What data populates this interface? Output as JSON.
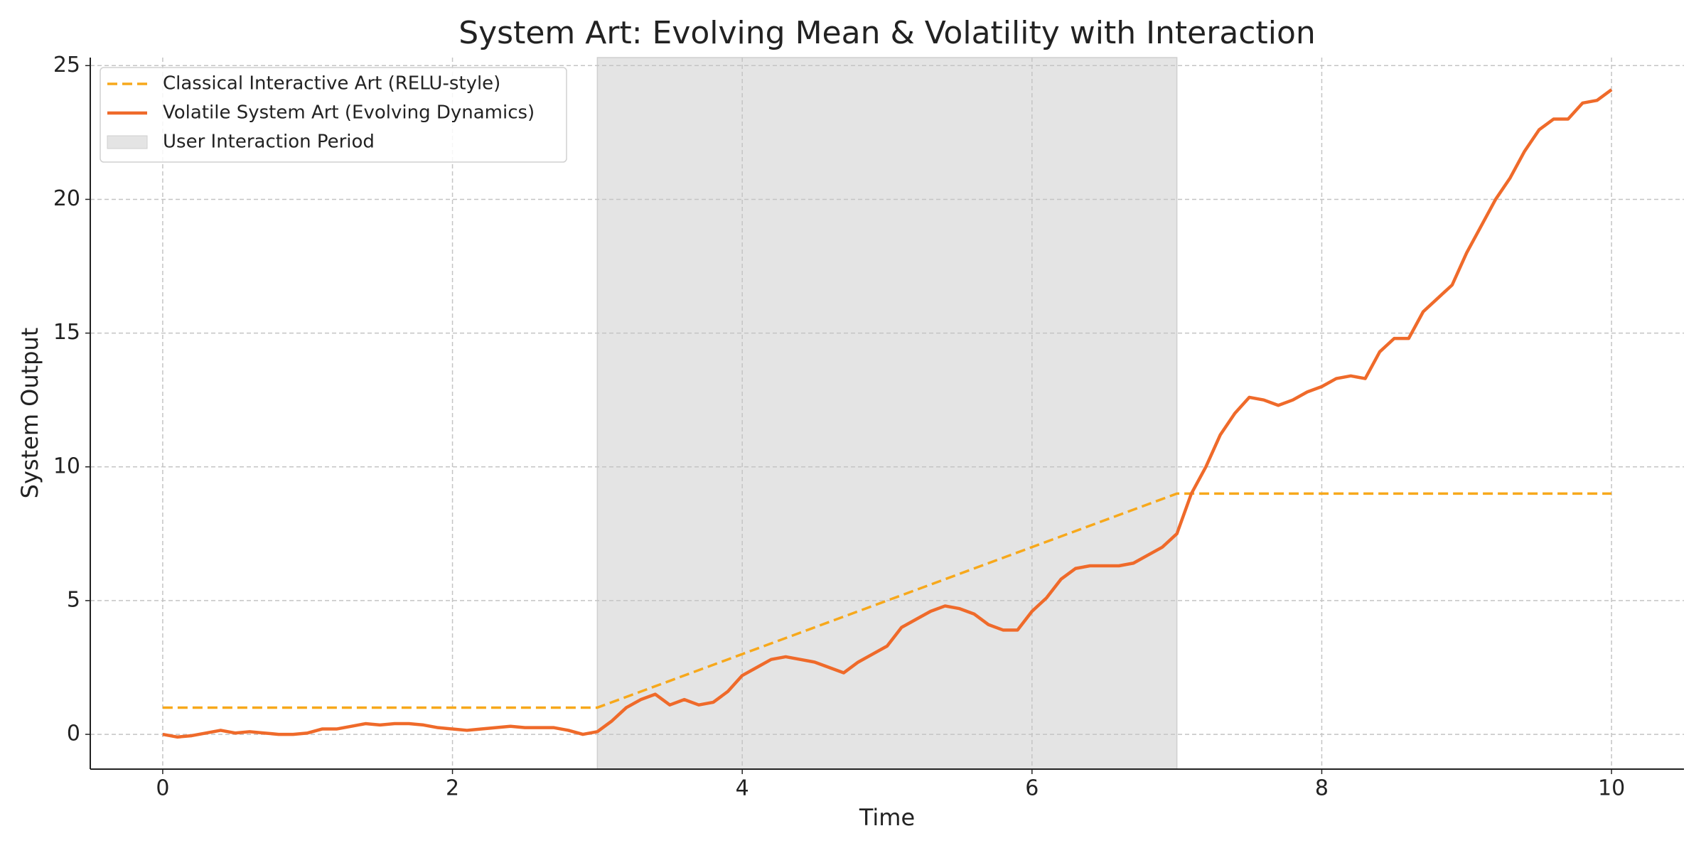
{
  "chart_data": {
    "type": "line",
    "title": "System Art: Evolving Mean & Volatility with Interaction",
    "x_label": "Time",
    "y_label": "System Output",
    "xlim": [
      -0.5,
      10.5
    ],
    "ylim": [
      -1.3,
      25.3
    ],
    "xticks": [
      0,
      2,
      4,
      6,
      8,
      10
    ],
    "yticks": [
      0,
      5,
      10,
      15,
      20,
      25
    ],
    "grid": true,
    "legend": "upper left",
    "span": {
      "name": "User Interaction Period",
      "x": [
        3,
        7
      ],
      "color": "#e4e4e4"
    },
    "series": [
      {
        "name": "Classical Interactive Art (RELU-style)",
        "color": "#f7a81b",
        "dashed": true,
        "x": [
          0,
          3,
          7,
          10
        ],
        "values": [
          1,
          1,
          9,
          9
        ]
      },
      {
        "name": "Volatile System Art (Evolving Dynamics)",
        "color": "#ef6a2a",
        "dashed": false,
        "x": [
          0,
          0.1,
          0.2,
          0.3,
          0.4,
          0.5,
          0.6,
          0.7,
          0.8,
          0.9,
          1,
          1.1,
          1.2,
          1.3,
          1.4,
          1.5,
          1.6,
          1.7,
          1.8,
          1.9,
          2,
          2.1,
          2.2,
          2.3,
          2.4,
          2.5,
          2.6,
          2.7,
          2.8,
          2.9,
          3,
          3.1,
          3.2,
          3.3,
          3.4,
          3.5,
          3.6,
          3.7,
          3.8,
          3.9,
          4,
          4.1,
          4.2,
          4.3,
          4.4,
          4.5,
          4.6,
          4.7,
          4.8,
          4.9,
          5,
          5.1,
          5.2,
          5.3,
          5.4,
          5.5,
          5.6,
          5.7,
          5.8,
          5.9,
          6,
          6.1,
          6.2,
          6.3,
          6.4,
          6.5,
          6.6,
          6.7,
          6.8,
          6.9,
          7,
          7.1,
          7.2,
          7.3,
          7.4,
          7.5,
          7.6,
          7.7,
          7.8,
          7.9,
          8,
          8.1,
          8.2,
          8.3,
          8.4,
          8.5,
          8.6,
          8.7,
          8.8,
          8.9,
          9,
          9.1,
          9.2,
          9.3,
          9.4,
          9.5,
          9.6,
          9.7,
          9.8,
          9.9,
          10
        ],
        "values": [
          0,
          -0.1,
          -0.05,
          0.05,
          0.15,
          0.05,
          0.1,
          0.05,
          0,
          0,
          0.05,
          0.2,
          0.2,
          0.3,
          0.4,
          0.35,
          0.4,
          0.4,
          0.35,
          0.25,
          0.2,
          0.15,
          0.2,
          0.25,
          0.3,
          0.25,
          0.25,
          0.25,
          0.15,
          0,
          0.1,
          0.5,
          1.0,
          1.3,
          1.5,
          1.1,
          1.3,
          1.1,
          1.2,
          1.6,
          2.2,
          2.5,
          2.8,
          2.9,
          2.8,
          2.7,
          2.5,
          2.3,
          2.7,
          3.0,
          3.3,
          4.0,
          4.3,
          4.6,
          4.8,
          4.7,
          4.5,
          4.1,
          3.9,
          3.9,
          4.6,
          5.1,
          5.8,
          6.2,
          6.3,
          6.3,
          6.3,
          6.4,
          6.7,
          7.0,
          7.5,
          9.0,
          10.0,
          11.2,
          12.0,
          12.6,
          12.5,
          12.3,
          12.5,
          12.8,
          13.0,
          13.3,
          13.4,
          13.3,
          14.3,
          14.8,
          14.8,
          15.8,
          16.3,
          16.8,
          18.0,
          19.0,
          20.0,
          20.8,
          21.8,
          22.6,
          23.0,
          23.0,
          23.6,
          23.7,
          24.1
        ]
      }
    ]
  }
}
